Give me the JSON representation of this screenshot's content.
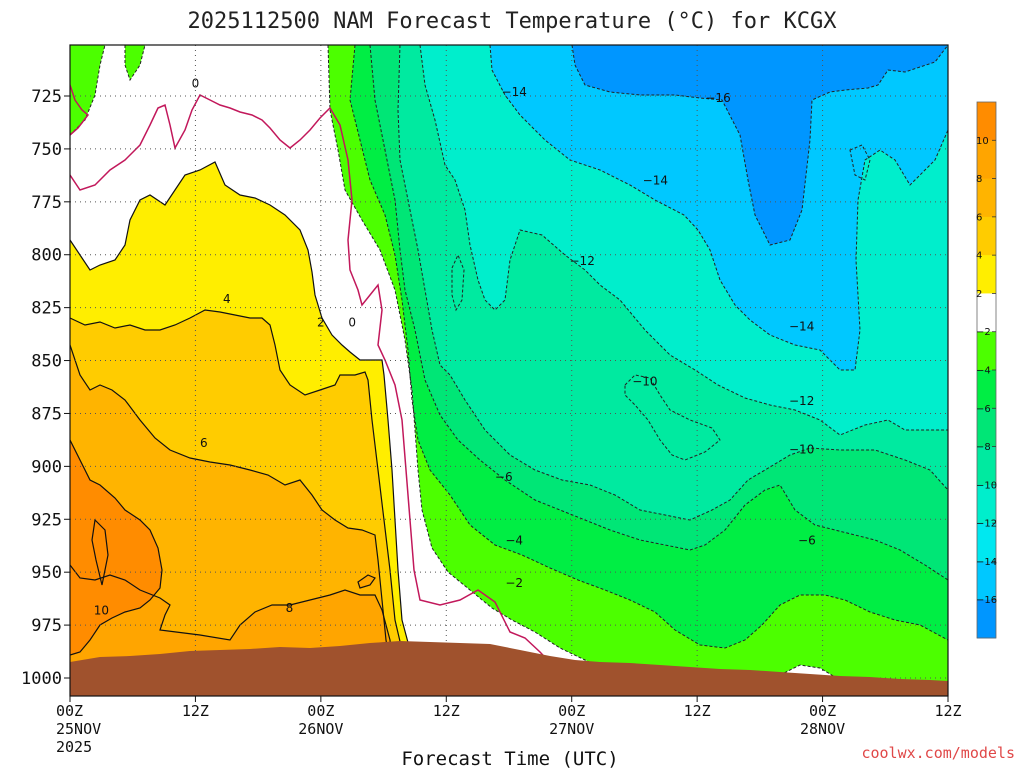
{
  "chart_data": {
    "type": "time-height contour",
    "title": "2025112500 NAM Forecast Temperature (°C) for KCGX",
    "xlabel": "Forecast Time (UTC)",
    "credit": "coolwx.com/models",
    "y_axis": {
      "range": [
        1010,
        700
      ],
      "ticks": [
        725,
        750,
        775,
        800,
        825,
        850,
        875,
        900,
        925,
        950,
        975,
        1000
      ],
      "tick_labels": [
        "725",
        "750",
        "775",
        "800",
        "825",
        "850",
        "875",
        "900",
        "925",
        "950",
        "975",
        "1000"
      ]
    },
    "x_axis": {
      "range_hours": [
        0,
        84
      ],
      "ticks": [
        {
          "hour": 0,
          "lines": [
            "00Z",
            "25NOV",
            "2025"
          ]
        },
        {
          "hour": 12,
          "lines": [
            "12Z"
          ]
        },
        {
          "hour": 24,
          "lines": [
            "00Z",
            "26NOV"
          ]
        },
        {
          "hour": 36,
          "lines": [
            "12Z"
          ]
        },
        {
          "hour": 48,
          "lines": [
            "00Z",
            "27NOV"
          ]
        },
        {
          "hour": 60,
          "lines": [
            "12Z"
          ]
        },
        {
          "hour": 72,
          "lines": [
            "00Z",
            "28NOV"
          ]
        },
        {
          "hour": 84,
          "lines": [
            "12Z"
          ]
        }
      ]
    },
    "colorbar": {
      "labels": [
        "10",
        "8",
        "6",
        "4",
        "2",
        "−2",
        "−4",
        "−6",
        "−8",
        "−10",
        "−12",
        "−14",
        "−16"
      ],
      "colors": [
        "#ff8c00",
        "#ffa500",
        "#ffb400",
        "#ffcc00",
        "#ffee00",
        "#ffffff",
        "#4cff00",
        "#00ee44",
        "#00e676",
        "#00eaa0",
        "#00eecc",
        "#00e8f0",
        "#00c8ff",
        "#0096ff"
      ]
    },
    "contour_labels": [
      {
        "text": "0",
        "hour": 12,
        "p": 719
      },
      {
        "text": "−14",
        "hour": 42.5,
        "p": 723
      },
      {
        "text": "−16",
        "hour": 62,
        "p": 726
      },
      {
        "text": "−14",
        "hour": 56,
        "p": 765
      },
      {
        "text": "−12",
        "hour": 49,
        "p": 803
      },
      {
        "text": "4",
        "hour": 15,
        "p": 821
      },
      {
        "text": "2",
        "hour": 24,
        "p": 832
      },
      {
        "text": "0",
        "hour": 27,
        "p": 832
      },
      {
        "text": "−14",
        "hour": 70,
        "p": 834
      },
      {
        "text": "−10",
        "hour": 55,
        "p": 860
      },
      {
        "text": "−12",
        "hour": 70,
        "p": 869
      },
      {
        "text": "6",
        "hour": 12.8,
        "p": 889
      },
      {
        "text": "−10",
        "hour": 70,
        "p": 892
      },
      {
        "text": "−6",
        "hour": 41.5,
        "p": 905
      },
      {
        "text": "−4",
        "hour": 42.5,
        "p": 935
      },
      {
        "text": "−6",
        "hour": 70.5,
        "p": 935
      },
      {
        "text": "−2",
        "hour": 42.5,
        "p": 955
      },
      {
        "text": "8",
        "hour": 21,
        "p": 967
      },
      {
        "text": "10",
        "hour": 3,
        "p": 968
      }
    ],
    "temperature_fields": [
      {
        "band": "10",
        "hour": 1,
        "p": 945
      },
      {
        "band": "8",
        "hour": 8,
        "p": 915
      },
      {
        "band": "6",
        "hour": 15,
        "p": 885
      },
      {
        "band": "4",
        "hour": 15,
        "p": 830
      },
      {
        "band": "2",
        "hour": 15,
        "p": 790
      },
      {
        "band": "-2",
        "hour": 10,
        "p": 760
      },
      {
        "band": "-4",
        "hour": 29,
        "p": 760
      },
      {
        "band": "-6",
        "hour": 31,
        "p": 840
      },
      {
        "band": "-8",
        "hour": 36,
        "p": 900
      },
      {
        "band": "-10",
        "hour": 40,
        "p": 870
      },
      {
        "band": "-12",
        "hour": 46,
        "p": 830
      },
      {
        "band": "-14",
        "hour": 49,
        "p": 760
      },
      {
        "band": "-16",
        "hour": 64,
        "p": 760
      }
    ]
  }
}
